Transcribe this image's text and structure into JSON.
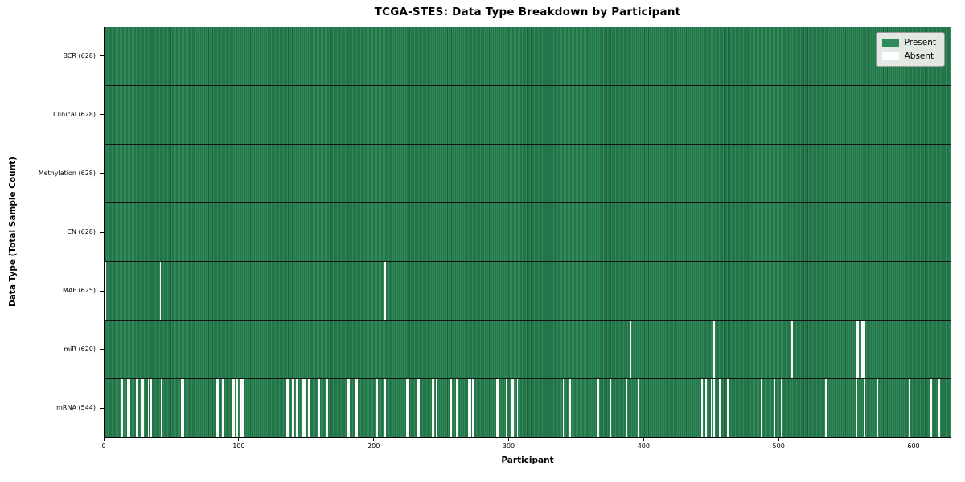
{
  "figure": {
    "title": "TCGA-STES: Data Type Breakdown by Participant",
    "xlabel": "Participant",
    "ylabel": "Data Type (Total Sample Count)"
  },
  "legend": {
    "items": [
      {
        "label": "Present",
        "color": "#2e8b57"
      },
      {
        "label": "Absent",
        "color": "#ffffff"
      }
    ]
  },
  "chart_data": {
    "type": "heatmap",
    "title": "TCGA-STES: Data Type Breakdown by Participant",
    "xlabel": "Participant",
    "ylabel": "Data Type (Total Sample Count)",
    "legend": [
      "Present",
      "Absent"
    ],
    "legend_position": "upper right",
    "n_participants": 628,
    "xlim": [
      0,
      628
    ],
    "x_ticks": [
      0,
      100,
      200,
      300,
      400,
      500,
      600
    ],
    "colors": {
      "present": "#2e8b57",
      "present_edge": "#1f5e3d",
      "absent": "#fafafa",
      "row_separator": "#131313",
      "legend_bg": "#e2e8e2"
    },
    "rows": [
      {
        "label": "BCR (628)",
        "total": 628,
        "absent": []
      },
      {
        "label": "Clinical (628)",
        "total": 628,
        "absent": []
      },
      {
        "label": "Methylation (628)",
        "total": 628,
        "absent": []
      },
      {
        "label": "CN (628)",
        "total": 628,
        "absent": []
      },
      {
        "label": "MAF (625)",
        "total": 625,
        "absent": [
          0,
          41,
          208
        ]
      },
      {
        "label": "miR (620)",
        "total": 620,
        "absent": [
          390,
          452,
          510,
          558,
          559,
          562,
          563,
          564
        ]
      },
      {
        "label": "mRNA (544)",
        "total": 544,
        "absent": [
          12,
          13,
          17,
          18,
          23,
          24,
          27,
          28,
          32,
          34,
          42,
          57,
          58,
          83,
          84,
          87,
          88,
          95,
          96,
          98,
          101,
          102,
          135,
          136,
          139,
          140,
          142,
          143,
          147,
          148,
          151,
          152,
          158,
          159,
          164,
          165,
          180,
          181,
          186,
          187,
          201,
          202,
          208,
          224,
          225,
          232,
          233,
          243,
          244,
          246,
          256,
          257,
          261,
          270,
          271,
          273,
          291,
          292,
          298,
          302,
          303,
          306,
          340,
          345,
          366,
          375,
          387,
          396,
          443,
          446,
          450,
          452,
          456,
          462,
          487,
          497,
          502,
          535,
          558,
          564,
          573,
          597,
          613,
          619
        ]
      }
    ]
  }
}
